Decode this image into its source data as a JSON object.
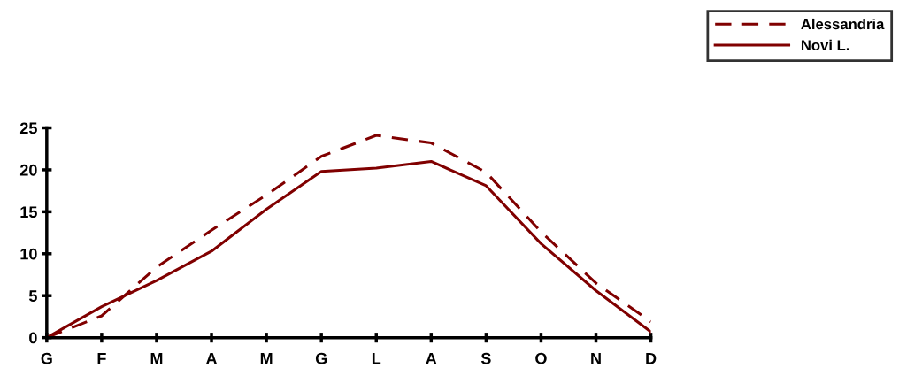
{
  "chart_data": {
    "type": "line",
    "categories": [
      "G",
      "F",
      "M",
      "A",
      "M",
      "G",
      "L",
      "A",
      "S",
      "O",
      "N",
      "D"
    ],
    "series": [
      {
        "name": "Alessandria",
        "color": "#800000",
        "line_style": "dashed",
        "values": [
          0,
          2.6,
          8.4,
          12.8,
          17.0,
          21.6,
          24.1,
          23.2,
          19.7,
          12.6,
          6.5,
          1.9
        ]
      },
      {
        "name": "Novi L.",
        "color": "#800000",
        "line_style": "solid",
        "values": [
          0,
          3.7,
          6.8,
          10.3,
          15.3,
          19.8,
          20.2,
          21.0,
          18.1,
          11.2,
          5.6,
          0.7
        ]
      }
    ],
    "ylim": [
      0,
      25
    ],
    "yticks": [
      0,
      5,
      10,
      15,
      20,
      25
    ],
    "grid": false,
    "legend": "top right",
    "marker": "none"
  }
}
